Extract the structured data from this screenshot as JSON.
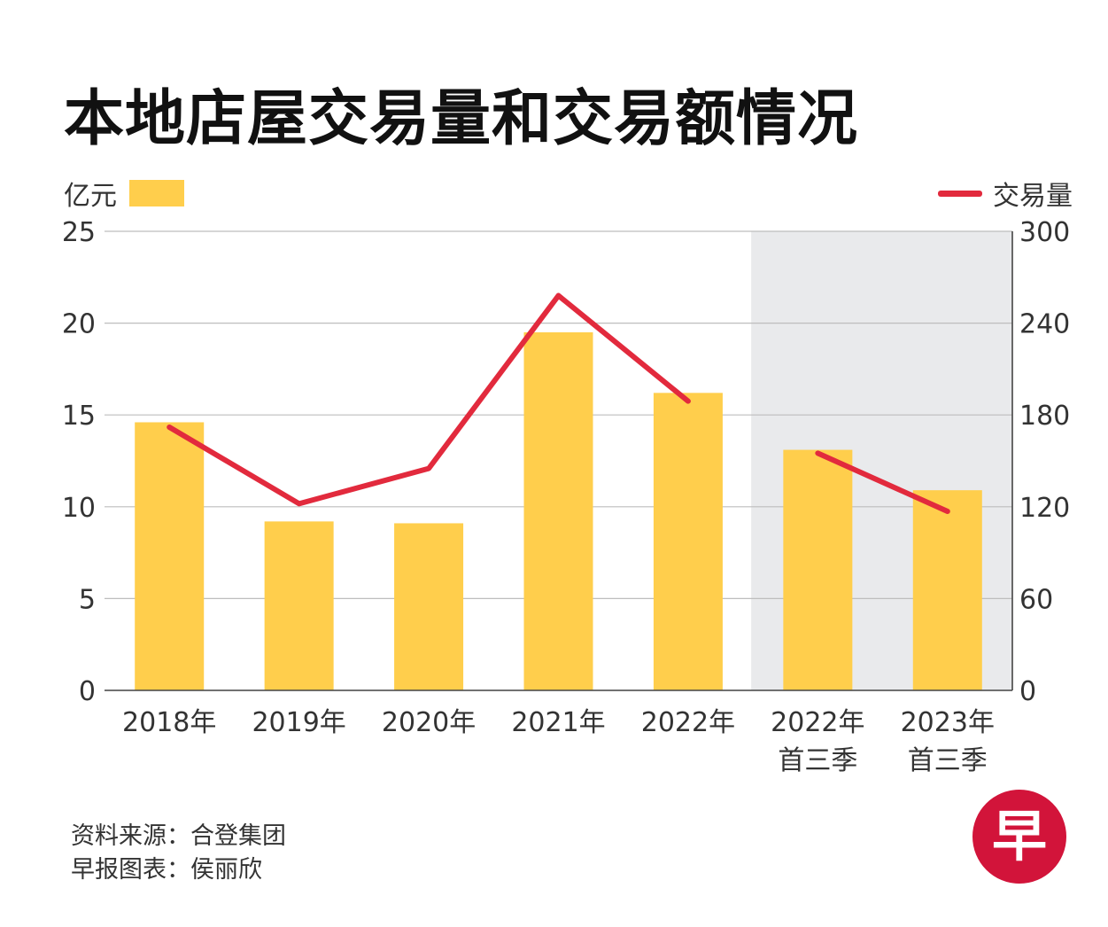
{
  "title": "本地店屋交易量和交易额情况",
  "legend": {
    "left_unit": "亿元",
    "right_label": "交易量"
  },
  "colors": {
    "bar": "#FFCE4C",
    "line": "#E22A3D",
    "shade": "#E9EAEC",
    "grid": "#BDBDBD",
    "logo": "#D2143A"
  },
  "chart_data": {
    "type": "bar",
    "title": "本地店屋交易量和交易额情况",
    "categories": [
      [
        "2018年"
      ],
      [
        "2019年"
      ],
      [
        "2020年"
      ],
      [
        "2021年"
      ],
      [
        "2022年"
      ],
      [
        "2022年",
        "首三季"
      ],
      [
        "2023年",
        "首三季"
      ]
    ],
    "series": [
      {
        "name": "亿元",
        "type": "bar",
        "axis": "left",
        "values": [
          14.6,
          9.2,
          9.1,
          19.5,
          16.2,
          13.1,
          10.9
        ]
      },
      {
        "name": "交易量",
        "type": "line",
        "axis": "right",
        "values": [
          172,
          122,
          145,
          258,
          189,
          155,
          117
        ]
      }
    ],
    "left_axis": {
      "label": "亿元",
      "ylim": [
        0,
        25
      ],
      "ticks": [
        0,
        5,
        10,
        15,
        20,
        25
      ]
    },
    "right_axis": {
      "label": "交易量",
      "ylim": [
        0,
        300
      ],
      "ticks": [
        0,
        60,
        120,
        180,
        240,
        300
      ]
    },
    "shaded_categories": [
      5,
      6
    ],
    "grid": true
  },
  "footer": {
    "source": "资料来源：合登集团",
    "credit": "早报图表：侯丽欣"
  },
  "logo": {
    "char": "早"
  }
}
